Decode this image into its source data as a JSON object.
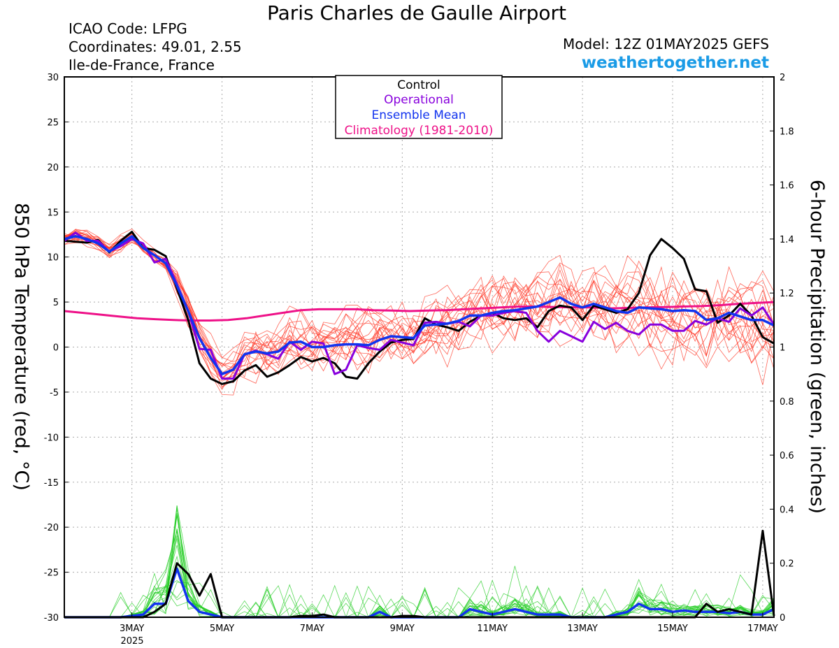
{
  "header": {
    "title": "Paris Charles de Gaulle Airport",
    "icao": "ICAO Code: LFPG",
    "coords": "Coordinates: 49.01, 2.55",
    "region": "Ile-de-France, France",
    "model": "Model: 12Z 01MAY2025 GEFS",
    "site": "weathertogether.net"
  },
  "legend": {
    "items": [
      {
        "label": "Control",
        "color": "#000000"
      },
      {
        "label": "Operational",
        "color": "#8800dd"
      },
      {
        "label": "Ensemble Mean",
        "color": "#1133ee"
      },
      {
        "label": "Climatology (1981-2010)",
        "color": "#ee1188"
      }
    ]
  },
  "chart_data": {
    "type": "line",
    "ylabel_left": "850 hPa Temperature (red, °C)",
    "ylabel_right": "6-hour Precipitation (green, inches)",
    "ylim_left": [
      -30,
      30
    ],
    "ylim_right": [
      0,
      2
    ],
    "yticks_left": [
      "30",
      "25",
      "20",
      "15",
      "10",
      "5",
      "0",
      "-5",
      "-10",
      "-15",
      "-20",
      "-25",
      "-30"
    ],
    "yticks_right": [
      "2",
      "1.8",
      "1.6",
      "1.4",
      "1.2",
      "1",
      "0.8",
      "0.6",
      "0.4",
      "0.2",
      "0"
    ],
    "x_step_hours": 6,
    "x_start": "01MAY2025 12Z",
    "x_ticks": [
      {
        "label": "3MAY",
        "index": 6
      },
      {
        "label": "5MAY",
        "index": 14
      },
      {
        "label": "7MAY",
        "index": 22
      },
      {
        "label": "9MAY",
        "index": 30
      },
      {
        "label": "11MAY",
        "index": 38
      },
      {
        "label": "13MAY",
        "index": 46
      },
      {
        "label": "15MAY",
        "index": 54
      },
      {
        "label": "17MAY",
        "index": 62
      }
    ],
    "year_label": "2025",
    "grid": true,
    "series": [
      {
        "name": "Control",
        "axis": "left",
        "color": "#000000",
        "values": [
          11.8,
          11.7,
          11.6,
          11.9,
          10.5,
          11.8,
          12.8,
          11.0,
          10.8,
          10.1,
          6.5,
          3.0,
          -1.8,
          -3.5,
          -4.1,
          -3.8,
          -2.6,
          -2.0,
          -3.3,
          -2.8,
          -2.0,
          -1.1,
          -1.6,
          -1.2,
          -1.8,
          -3.3,
          -3.5,
          -1.8,
          -0.5,
          0.5,
          0.8,
          0.9,
          3.2,
          2.5,
          2.2,
          1.8,
          2.8,
          3.5,
          3.8,
          3.2,
          3.0,
          3.2,
          2.2,
          4.0,
          4.6,
          4.4,
          3.0,
          4.6,
          4.2,
          3.8,
          4.2,
          6.0,
          10.2,
          12.0,
          11.0,
          9.8,
          6.4,
          6.2,
          2.7,
          3.5,
          4.8,
          3.5,
          1.1,
          0.4
        ]
      },
      {
        "name": "Operational",
        "axis": "left",
        "color": "#8800dd",
        "values": [
          11.8,
          12.7,
          11.8,
          11.8,
          10.6,
          11.2,
          12.0,
          11.5,
          9.4,
          9.8,
          7.0,
          4.0,
          -0.2,
          -0.3,
          -3.5,
          -3.5,
          -0.8,
          -0.4,
          -0.8,
          -1.3,
          0.6,
          -0.3,
          0.6,
          0.4,
          -3.0,
          -2.5,
          0.2,
          -0.1,
          -0.3,
          0.8,
          0.5,
          0.2,
          2.7,
          2.8,
          2.6,
          2.8,
          2.3,
          3.5,
          3.5,
          3.8,
          4.0,
          3.8,
          1.8,
          0.6,
          1.8,
          1.2,
          0.6,
          2.8,
          2.0,
          2.7,
          1.8,
          1.4,
          2.5,
          2.5,
          1.8,
          1.8,
          2.9,
          2.5,
          3.2,
          2.8,
          4.3,
          3.5,
          4.4,
          2.5
        ]
      },
      {
        "name": "Ensemble Mean",
        "axis": "left",
        "color": "#1133ee",
        "values": [
          12.0,
          12.3,
          12.0,
          11.5,
          10.6,
          11.5,
          12.3,
          11.0,
          10.2,
          9.3,
          6.8,
          4.0,
          1.0,
          -1.2,
          -3.0,
          -2.5,
          -0.8,
          -0.5,
          -0.7,
          -0.5,
          0.5,
          0.6,
          0.0,
          0.0,
          0.2,
          0.3,
          0.3,
          0.2,
          0.8,
          1.2,
          1.1,
          1.0,
          2.4,
          2.5,
          2.6,
          2.9,
          3.5,
          3.5,
          3.8,
          4.0,
          4.1,
          4.3,
          4.5,
          5.0,
          5.5,
          4.8,
          4.4,
          4.8,
          4.4,
          4.0,
          3.8,
          4.4,
          4.3,
          4.2,
          4.0,
          4.1,
          4.0,
          3.0,
          3.2,
          3.8,
          3.4,
          3.0,
          3.0,
          2.4
        ]
      },
      {
        "name": "Climatology (1981-2010)",
        "axis": "left",
        "color": "#ee1188",
        "values": [
          4.0,
          3.8,
          3.6,
          3.4,
          3.2,
          3.1,
          3.0,
          2.95,
          2.95,
          3.0,
          3.2,
          3.5,
          3.8,
          4.1,
          4.2,
          4.2,
          4.2,
          4.1,
          4.05,
          4.0,
          4.05,
          4.1,
          4.2,
          4.3,
          4.4,
          4.5,
          4.5,
          4.45,
          4.4,
          4.4,
          4.3,
          4.35,
          4.4,
          4.45,
          4.5,
          4.55,
          4.65,
          4.8,
          4.9,
          5.0
        ]
      },
      {
        "name": "Control precip",
        "axis": "right",
        "color": "#000000",
        "values": [
          0,
          0,
          0,
          0,
          0,
          0,
          0,
          0,
          0.02,
          0.05,
          0.2,
          0.16,
          0.08,
          0.16,
          0,
          0,
          0,
          0,
          0,
          0,
          0,
          0.005,
          0.005,
          0.01,
          0,
          0,
          0,
          0,
          0,
          0,
          0.005,
          0.005,
          0,
          0,
          0,
          0,
          0,
          0,
          0,
          0,
          0,
          0,
          0,
          0,
          0,
          0,
          0,
          0,
          0,
          0,
          0,
          0,
          0,
          0,
          0,
          0,
          0,
          0.05,
          0.02,
          0.03,
          0.02,
          0.01,
          0.32,
          0.005
        ]
      },
      {
        "name": "Ensemble Mean precip",
        "axis": "right",
        "color": "#1133ee",
        "values": [
          0,
          0,
          0,
          0,
          0,
          0,
          0.005,
          0.01,
          0.05,
          0.05,
          0.18,
          0.06,
          0.02,
          0.01,
          0,
          0,
          0,
          0,
          0,
          0,
          0,
          0,
          0,
          0,
          0,
          0,
          0,
          0,
          0.02,
          0,
          0,
          0,
          0,
          0,
          0,
          0,
          0.03,
          0.02,
          0.01,
          0.02,
          0.03,
          0.02,
          0.01,
          0.01,
          0.01,
          0,
          0,
          0,
          0,
          0.01,
          0.02,
          0.05,
          0.03,
          0.03,
          0.02,
          0.025,
          0.02,
          0.02,
          0.02,
          0.015,
          0.02,
          0.01,
          0.01,
          0.03
        ]
      }
    ]
  }
}
